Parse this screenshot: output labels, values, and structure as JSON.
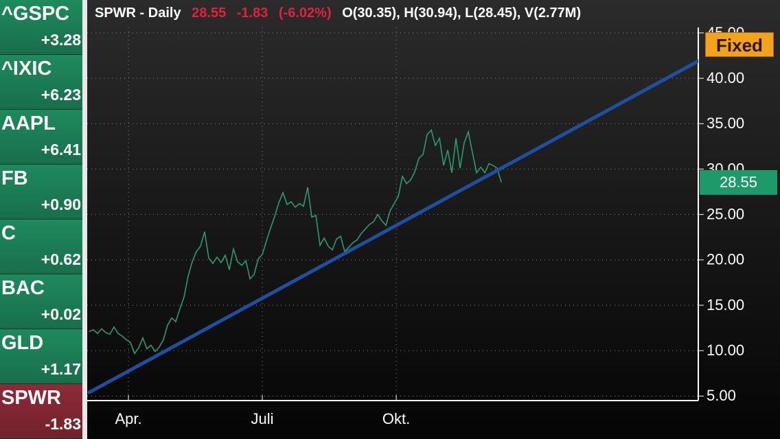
{
  "watchlist": [
    {
      "symbol": "^GSPC",
      "change": "+3.28",
      "color": "#1e8a5e"
    },
    {
      "symbol": "^IXIC",
      "change": "+6.23",
      "color": "#1e8a5e"
    },
    {
      "symbol": "AAPL",
      "change": "+6.41",
      "color": "#1e8a5e"
    },
    {
      "symbol": "FB",
      "change": "+0.90",
      "color": "#1e8a5e"
    },
    {
      "symbol": "C",
      "change": "+0.62",
      "color": "#1e8a5e"
    },
    {
      "symbol": "BAC",
      "change": "+0.02",
      "color": "#1e8a5e"
    },
    {
      "symbol": "GLD",
      "change": "+1.17",
      "color": "#1e8a5e"
    },
    {
      "symbol": "SPWR",
      "change": "-1.83",
      "color": "#8e2a38"
    }
  ],
  "chart_data": {
    "type": "line",
    "title": "SPWR - Daily",
    "quote": {
      "last": "28.55",
      "change": "-1.83",
      "change_pct": "(-6.02%)",
      "ohlcv": "O(30.35), H(30.94), L(28.45), V(2.77M)"
    },
    "fixed_button": "Fixed",
    "xlim": [
      0,
      147.8
    ],
    "xticks": [
      {
        "value": 9.5,
        "label": "Apr."
      },
      {
        "value": 42,
        "label": "Juli"
      },
      {
        "value": 74.5,
        "label": "Okt."
      }
    ],
    "ylim": [
      4.5,
      45.6
    ],
    "yticks": [
      {
        "value": 5,
        "label": "5.00"
      },
      {
        "value": 10,
        "label": "10.00"
      },
      {
        "value": 15,
        "label": "15.00"
      },
      {
        "value": 20,
        "label": "20.00"
      },
      {
        "value": 25,
        "label": "25.00"
      },
      {
        "value": 30,
        "label": "30.00"
      },
      {
        "value": 35,
        "label": "35.00"
      },
      {
        "value": 40,
        "label": "40.00"
      },
      {
        "value": 45,
        "label": "45.00"
      }
    ],
    "grid": true,
    "series": [
      {
        "name": "SPWR",
        "color": "#2a9d6e",
        "values": [
          12.1,
          12.3,
          11.9,
          12.4,
          12.0,
          11.8,
          12.6,
          11.9,
          11.6,
          11.2,
          10.9,
          9.7,
          10.3,
          11.4,
          10.2,
          10.6,
          9.9,
          10.4,
          11.2,
          12.8,
          13.6,
          13.2,
          14.6,
          15.9,
          18.2,
          19.8,
          20.9,
          21.5,
          23.1,
          20.2,
          19.6,
          20.3,
          19.7,
          20.5,
          18.9,
          21.2,
          19.8,
          19.4,
          19.9,
          17.9,
          18.4,
          20.1,
          20.6,
          22.1,
          23.5,
          24.8,
          26.3,
          27.4,
          26.1,
          26.4,
          25.8,
          26.2,
          25.9,
          28.0,
          24.7,
          24.9,
          21.6,
          22.4,
          21.5,
          21.1,
          22.3,
          22.6,
          20.9,
          21.4,
          21.9,
          22.2,
          22.9,
          23.4,
          23.9,
          24.2,
          25.0,
          24.3,
          23.8,
          25.4,
          26.2,
          27.0,
          29.2,
          28.4,
          28.8,
          29.7,
          31.2,
          31.6,
          33.8,
          34.3,
          32.6,
          33.4,
          30.4,
          32.1,
          29.6,
          33.4,
          30.1,
          32.9,
          34.1,
          31.8,
          29.6,
          30.2,
          29.6,
          30.6,
          30.4,
          30.1,
          28.55
        ]
      }
    ],
    "trendline": {
      "color": "#1f4fa3",
      "x": [
        0,
        147.8
      ],
      "values": [
        5.4,
        41.9
      ]
    }
  }
}
